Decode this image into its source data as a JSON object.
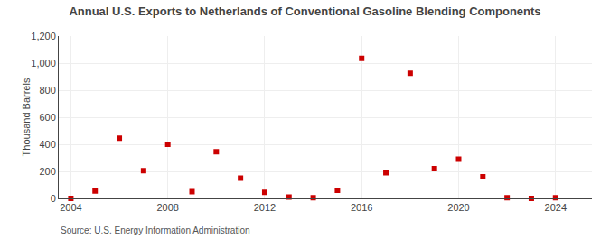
{
  "chart_data": {
    "type": "scatter",
    "title": "Annual U.S. Exports to Netherlands of Conventional Gasoline Blending Components",
    "ylabel": "Thousand Barrels",
    "source": "Source: U.S. Energy Information Administration",
    "x": [
      2004,
      2005,
      2006,
      2007,
      2008,
      2009,
      2010,
      2011,
      2012,
      2013,
      2014,
      2015,
      2016,
      2017,
      2018,
      2019,
      2020,
      2021,
      2022,
      2023,
      2024
    ],
    "values": [
      0,
      55,
      445,
      205,
      400,
      50,
      345,
      150,
      45,
      10,
      5,
      60,
      1035,
      190,
      925,
      220,
      290,
      160,
      5,
      0,
      5
    ],
    "color": "#cc0000",
    "marker": "square",
    "xlim": [
      2003.5,
      2025.5
    ],
    "xticks": [
      2004,
      2008,
      2012,
      2016,
      2020,
      2024
    ],
    "ylim": [
      0,
      1200
    ],
    "yticks": [
      0,
      200,
      400,
      600,
      800,
      {
        "value": 1000,
        "label": "1,000"
      },
      {
        "value": 1200,
        "label": "1,200"
      }
    ],
    "grid": true
  }
}
